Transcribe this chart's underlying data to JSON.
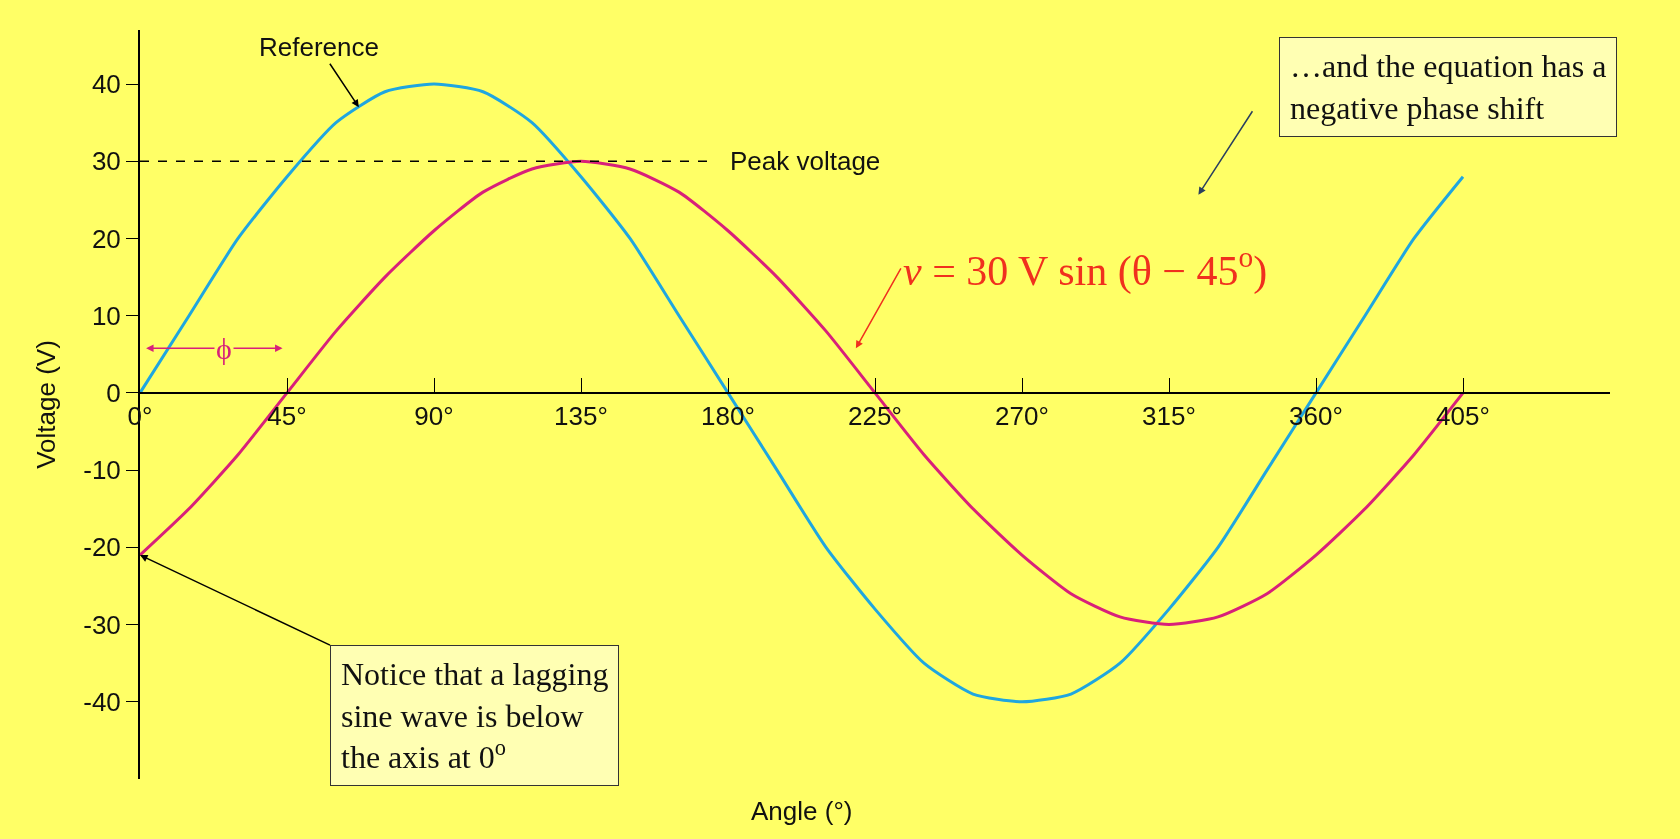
{
  "chart_data": {
    "type": "line",
    "xlabel": "Angle (°)",
    "ylabel": "Voltage (V)",
    "x": [
      0,
      15,
      30,
      45,
      60,
      75,
      90,
      105,
      120,
      135,
      150,
      165,
      180,
      195,
      210,
      225,
      240,
      255,
      270,
      285,
      300,
      315,
      330,
      345,
      360,
      375,
      390,
      405
    ],
    "series": [
      {
        "color": "#1fa6e0",
        "values": [
          0,
          10,
          20,
          28,
          35,
          39,
          40,
          39,
          35,
          28,
          20,
          10,
          0,
          -10,
          -20,
          -28,
          -35,
          -39,
          -40,
          -39,
          -35,
          -28,
          -20,
          -10,
          0,
          10,
          20,
          28
        ]
      },
      {
        "color": "#d8207a",
        "values": [
          -21,
          -15,
          -8,
          0,
          8,
          15,
          21,
          26,
          29,
          30,
          29,
          26,
          21,
          15,
          8,
          0,
          -8,
          -15,
          -21,
          -26,
          -29,
          -30,
          -29,
          -26,
          -21,
          -15,
          -8,
          0
        ]
      }
    ],
    "xlim": [
      0,
      450
    ],
    "ylim": [
      -50,
      47
    ],
    "xticks": [
      {
        "value": 0,
        "label": "0°"
      },
      {
        "value": 45,
        "label": "45°"
      },
      {
        "value": 90,
        "label": "90°"
      },
      {
        "value": 135,
        "label": "135°"
      },
      {
        "value": 180,
        "label": "180°"
      },
      {
        "value": 225,
        "label": "225°"
      },
      {
        "value": 270,
        "label": "270°"
      },
      {
        "value": 315,
        "label": "315°"
      },
      {
        "value": 360,
        "label": "360°"
      },
      {
        "value": 405,
        "label": "405°"
      }
    ],
    "yticks": [
      40,
      30,
      20,
      10,
      0,
      -10,
      -20,
      -30,
      -40
    ],
    "ref_lines": [
      {
        "axis": "y",
        "value": 30,
        "label": "Peak voltage",
        "color": "#000000",
        "line_style": "dashed"
      }
    ],
    "annotations": [
      {
        "text": "Reference",
        "x": 67,
        "y": 37
      },
      {
        "text": "…and the equation has a negative phase shift"
      },
      "v = 30 V sin (θ − 45$^{o}$)",
      {
        "text": "Notice that a lagging sine wave is below the axis at 0$^{o}$",
        "x": 0,
        "y": -21
      },
      "ϕ"
    ],
    "grid": false,
    "marker": "none",
    "line_style": "solid"
  }
}
